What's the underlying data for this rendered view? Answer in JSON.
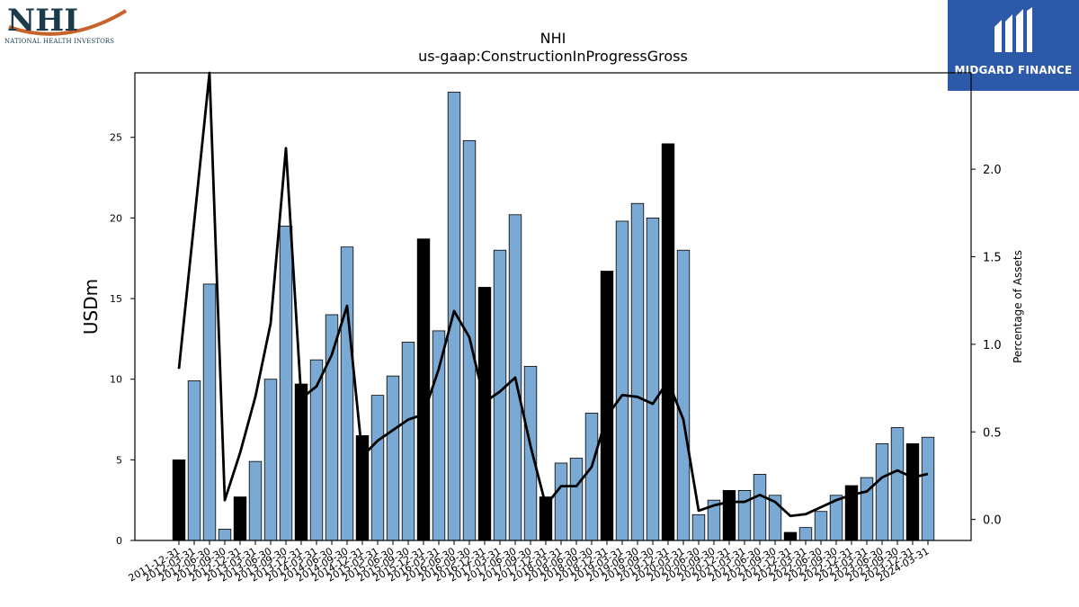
{
  "logos": {
    "left": {
      "text": "NHI",
      "subtext": "NATIONAL HEALTH INVESTORS"
    },
    "right": {
      "text": "MIDGARD FINANCE"
    }
  },
  "colors": {
    "bar_default": "#7aaad3",
    "bar_highlight": "#000000",
    "line": "#000000",
    "brand_blue": "#2d5aa8",
    "nhi_navy": "#1b3a4b",
    "nhi_orange": "#c8622b"
  },
  "chart_data": {
    "type": "bar",
    "title": "NHI",
    "subtitle": "us-gaap:ConstructionInProgressGross",
    "ylabel": "USDm",
    "y2label": "Percentage of Assets",
    "ylim": [
      0,
      29
    ],
    "y2lim": [
      -0.12,
      2.55
    ],
    "yticks": [
      0,
      5,
      10,
      15,
      20,
      25
    ],
    "y2ticks": [
      "0.0",
      "0.5",
      "1.0",
      "1.5",
      "2.0"
    ],
    "categories": [
      "2011-12-31",
      "2012-03-31",
      "2012-06-30",
      "2012-09-30",
      "2012-12-31",
      "2013-03-31",
      "2013-06-30",
      "2013-09-30",
      "2013-12-31",
      "2014-03-31",
      "2014-06-30",
      "2014-09-30",
      "2014-12-31",
      "2015-03-31",
      "2015-06-30",
      "2015-09-30",
      "2015-12-31",
      "2016-03-31",
      "2016-06-30",
      "2016-09-30",
      "2016-12-31",
      "2017-03-31",
      "2017-06-30",
      "2017-09-30",
      "2017-12-31",
      "2018-03-31",
      "2018-06-30",
      "2018-09-30",
      "2018-12-31",
      "2019-03-31",
      "2019-06-30",
      "2019-09-30",
      "2019-12-31",
      "2020-03-31",
      "2020-06-30",
      "2020-09-30",
      "2020-12-31",
      "2021-03-31",
      "2021-06-30",
      "2021-09-30",
      "2021-12-31",
      "2022-03-31",
      "2022-06-30",
      "2022-09-30",
      "2022-12-31",
      "2023-03-31",
      "2023-06-30",
      "2023-09-30",
      "2023-12-31",
      "2024-03-31"
    ],
    "values": [
      5.0,
      9.9,
      15.9,
      0.7,
      2.7,
      4.9,
      10.0,
      19.5,
      9.7,
      11.2,
      14.0,
      18.2,
      6.5,
      9.0,
      10.2,
      12.3,
      18.7,
      13.0,
      27.8,
      24.8,
      15.7,
      18.0,
      20.2,
      10.8,
      2.7,
      4.8,
      5.1,
      7.9,
      16.7,
      19.8,
      20.9,
      20.0,
      24.6,
      18.0,
      1.6,
      2.5,
      3.1,
      3.1,
      4.1,
      2.8,
      0.5,
      0.8,
      1.8,
      2.8,
      3.4,
      3.9,
      6.0,
      7.0,
      6.0,
      6.4
    ],
    "highlight": [
      true,
      false,
      false,
      false,
      true,
      false,
      false,
      false,
      true,
      false,
      false,
      false,
      true,
      false,
      false,
      false,
      true,
      false,
      false,
      false,
      true,
      false,
      false,
      false,
      true,
      false,
      false,
      false,
      true,
      false,
      false,
      false,
      true,
      false,
      false,
      false,
      true,
      false,
      false,
      false,
      true,
      false,
      false,
      false,
      true,
      false,
      false,
      false,
      true,
      false
    ],
    "series": [
      {
        "values": [
          0.86,
          1.7,
          2.55,
          0.11,
          0.38,
          0.7,
          1.12,
          2.12,
          0.69,
          0.76,
          0.94,
          1.22,
          0.36,
          0.45,
          0.51,
          0.57,
          0.6,
          0.86,
          1.19,
          1.04,
          0.67,
          0.73,
          0.81,
          0.42,
          0.08,
          0.19,
          0.19,
          0.3,
          0.59,
          0.71,
          0.7,
          0.66,
          0.79,
          0.57,
          0.05,
          0.08,
          0.1,
          0.1,
          0.14,
          0.1,
          0.02,
          0.03,
          0.07,
          0.11,
          0.14,
          0.16,
          0.24,
          0.28,
          0.24,
          0.26
        ]
      }
    ],
    "grid": false,
    "legend": "none"
  }
}
